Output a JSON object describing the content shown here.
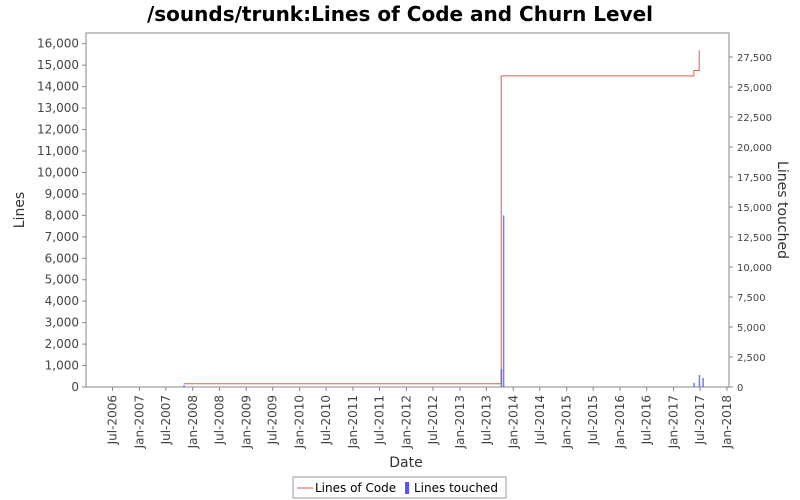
{
  "chart_data": {
    "type": "line",
    "title": "/sounds/trunk:Lines of Code and Churn Level",
    "xlabel": "Date",
    "ylabel": "Lines",
    "y2label": "Lines touched",
    "xlim": [
      "2006-01-01",
      "2018-01-15"
    ],
    "ylim": [
      0,
      16500
    ],
    "y2lim": [
      0,
      29500
    ],
    "x_ticks": [
      "Jul-2006",
      "Jan-2007",
      "Jul-2007",
      "Jan-2008",
      "Jul-2008",
      "Jan-2009",
      "Jul-2009",
      "Jan-2010",
      "Jul-2010",
      "Jan-2011",
      "Jul-2011",
      "Jan-2012",
      "Jul-2012",
      "Jan-2013",
      "Jul-2013",
      "Jan-2014",
      "Jul-2014",
      "Jan-2015",
      "Jul-2015",
      "Jan-2016",
      "Jul-2016",
      "Jan-2017",
      "Jul-2017",
      "Jan-2018"
    ],
    "y_ticks": [
      0,
      1000,
      2000,
      3000,
      4000,
      5000,
      6000,
      7000,
      8000,
      9000,
      10000,
      11000,
      12000,
      13000,
      14000,
      15000,
      16000
    ],
    "y2_ticks": [
      0,
      2500,
      5000,
      7500,
      10000,
      12500,
      15000,
      17500,
      20000,
      22500,
      25000,
      27500
    ],
    "legend_position": "bottom",
    "series": [
      {
        "name": "Lines of Code",
        "axis": "left",
        "color": "#e8574d",
        "step": true,
        "points": [
          [
            "2007-11-01",
            150
          ],
          [
            "2013-10-10",
            150
          ],
          [
            "2013-10-10",
            14500
          ],
          [
            "2013-10-25",
            14500
          ],
          [
            "2017-05-20",
            14500
          ],
          [
            "2017-05-20",
            14750
          ],
          [
            "2017-06-25",
            14750
          ],
          [
            "2017-06-25",
            15700
          ]
        ]
      },
      {
        "name": "Lines touched",
        "axis": "right",
        "type": "bar",
        "color": "#5555ff",
        "points": [
          [
            "2007-11-01",
            150
          ],
          [
            "2013-10-10",
            1500
          ],
          [
            "2013-10-25",
            14300
          ],
          [
            "2017-05-20",
            350
          ],
          [
            "2017-06-25",
            1000
          ],
          [
            "2017-07-20",
            750
          ]
        ]
      }
    ]
  }
}
